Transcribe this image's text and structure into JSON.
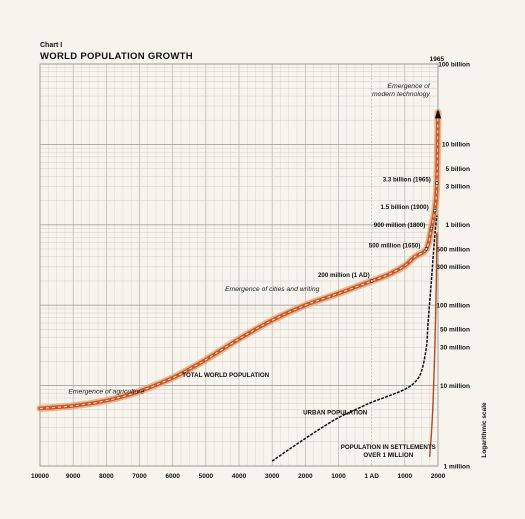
{
  "header": {
    "chart_number": "Chart I"
  },
  "chart_data": {
    "type": "line",
    "title": "WORLD POPULATION GROWTH",
    "ylabel": "Logarithmic scale",
    "y_scale": "log",
    "ylim_millions": [
      1,
      100000
    ],
    "xlim_years": [
      -10000,
      2000
    ],
    "grid": true,
    "x_ticks": [
      {
        "v": -10000,
        "label": "10000"
      },
      {
        "v": -9000,
        "label": "9000"
      },
      {
        "v": -8000,
        "label": "8000"
      },
      {
        "v": -7000,
        "label": "7000"
      },
      {
        "v": -6000,
        "label": "6000"
      },
      {
        "v": -5000,
        "label": "5000"
      },
      {
        "v": -4000,
        "label": "4000"
      },
      {
        "v": -3000,
        "label": "3000"
      },
      {
        "v": -2000,
        "label": "2000"
      },
      {
        "v": -1000,
        "label": "1000"
      },
      {
        "v": 0,
        "label": "1 AD"
      },
      {
        "v": 1000,
        "label": "1000"
      },
      {
        "v": 2000,
        "label": "2000"
      }
    ],
    "y_ticks": [
      {
        "v": 100000,
        "label": "100 billion"
      },
      {
        "v": 10000,
        "label": "10 billion"
      },
      {
        "v": 5000,
        "label": "5 billion"
      },
      {
        "v": 3000,
        "label": "3 billion"
      },
      {
        "v": 1000,
        "label": "1 billion"
      },
      {
        "v": 500,
        "label": "500 million"
      },
      {
        "v": 300,
        "label": "300 million"
      },
      {
        "v": 100,
        "label": "100 million"
      },
      {
        "v": 50,
        "label": "50 million"
      },
      {
        "v": 30,
        "label": "30 million"
      },
      {
        "v": 10,
        "label": "10 million"
      },
      {
        "v": 1,
        "label": "1 million"
      }
    ],
    "series": [
      {
        "name": "TOTAL WORLD POPULATION",
        "color": "#c8582a",
        "x": [
          -10000,
          -9000,
          -8000,
          -7000,
          -6000,
          -5500,
          -5000,
          -4000,
          -3000,
          -2000,
          -1000,
          0,
          500,
          1000,
          1300,
          1650,
          1800,
          1900,
          1965,
          2000
        ],
        "y": [
          5.2,
          5.6,
          6.5,
          8.5,
          12.5,
          16,
          21,
          38,
          65,
          100,
          140,
          200,
          240,
          310,
          400,
          500,
          900,
          1500,
          3300,
          25000
        ]
      },
      {
        "name": "URBAN POPULATION",
        "color": "#111111",
        "x": [
          -3000,
          -2500,
          -2000,
          -1500,
          -1000,
          -500,
          0,
          500,
          1000,
          1300,
          1500,
          1650,
          1700,
          1800,
          1900,
          1965
        ],
        "y": [
          1.15,
          1.6,
          2.2,
          3.0,
          4.0,
          5.0,
          6.2,
          7.4,
          9.0,
          11,
          15,
          30,
          60,
          200,
          700,
          1300
        ]
      },
      {
        "name": "POPULATION IN SETTLEMENTS OVER 1 MILLION",
        "color": "#b04a1e",
        "x": [
          1750,
          1800,
          1850,
          1900,
          1950,
          1965
        ],
        "y": [
          1.3,
          2.5,
          6,
          25,
          200,
          800
        ]
      }
    ],
    "data_labels": [
      {
        "text": "200 million (1 AD)",
        "x": 0,
        "y": 200
      },
      {
        "text": "500 million (1650)",
        "x": 1650,
        "y": 500
      },
      {
        "text": "900 million (1800)",
        "x": 1800,
        "y": 900
      },
      {
        "text": "1.5 billion (1900)",
        "x": 1900,
        "y": 1500
      },
      {
        "text": "3.3 billion (1965)",
        "x": 1965,
        "y": 3300
      }
    ],
    "annotations": [
      {
        "text": "Emergence of agriculture",
        "x": -8000,
        "y": 8
      },
      {
        "text": "Emergence of cities and writing",
        "x": -3000,
        "y": 150
      },
      {
        "text": "Emergence of modern technology",
        "x": 1965,
        "y": 50000
      }
    ],
    "top_marker": "1965",
    "series_labels": [
      {
        "text": "TOTAL WORLD POPULATION",
        "x": -4400,
        "y": 12.8
      },
      {
        "text": "URBAN POPULATION",
        "x": -1100,
        "y": 4.4
      },
      {
        "text": "POPULATION IN SETTLEMENTS",
        "x": 500,
        "y": 1.62
      },
      {
        "text": "OVER 1 MILLION",
        "x": 500,
        "y": 1.3
      }
    ]
  }
}
